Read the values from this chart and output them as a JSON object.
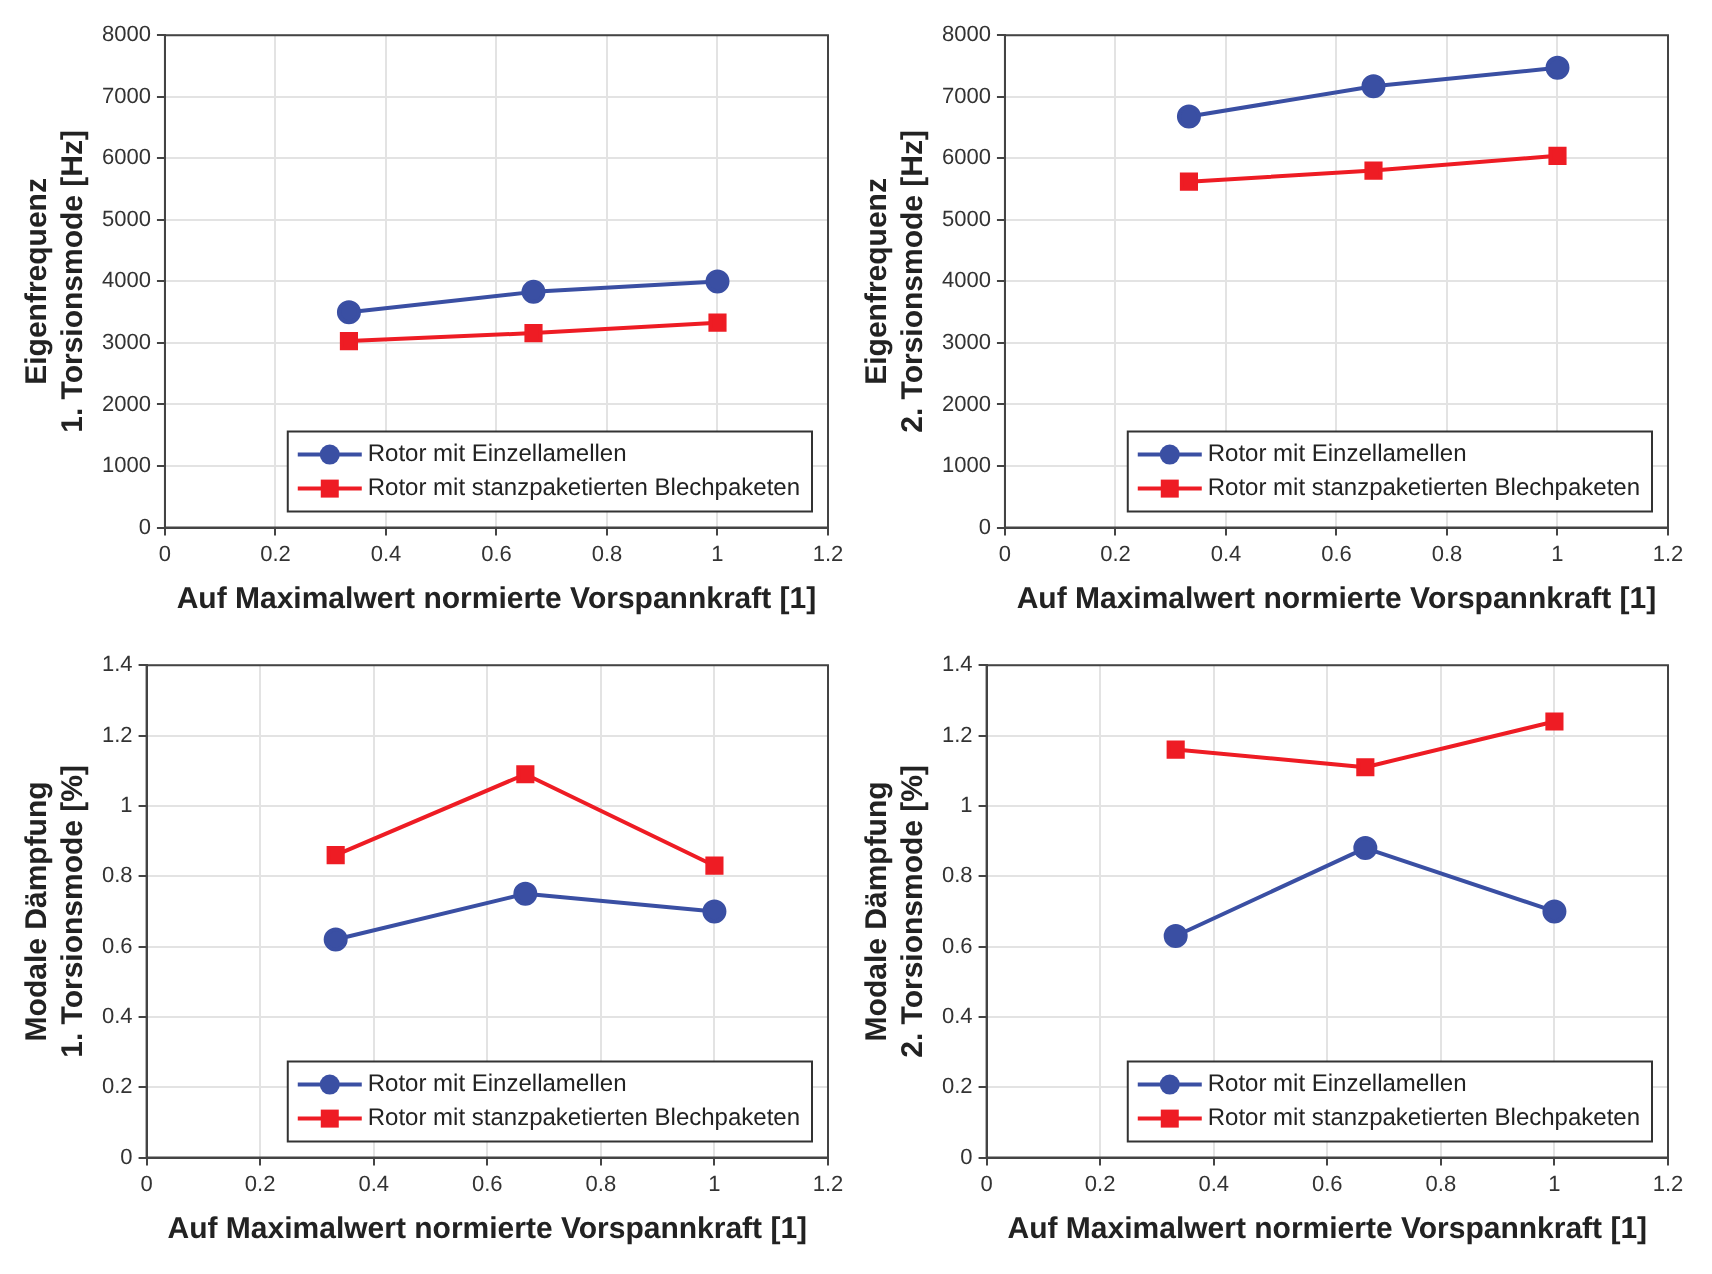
{
  "chart_data": [
    {
      "type": "line",
      "xlabel": "Auf Maximalwert normierte Vorspannkraft [1]",
      "ylabel": "Eigenfrequenz\n1. Torsionsmode [Hz]",
      "x": [
        0.333,
        0.667,
        1
      ],
      "xlim": [
        0,
        1.2
      ],
      "xticks": [
        0,
        0.2,
        0.4,
        0.6,
        0.8,
        1,
        1.2
      ],
      "ylim": [
        0,
        8000
      ],
      "yticks": [
        0,
        1000,
        2000,
        3000,
        4000,
        5000,
        6000,
        7000,
        8000
      ],
      "grid": true,
      "legend": "bottom right",
      "series": [
        {
          "name": "Rotor mit Einzellamellen",
          "color": "#3a4fa3",
          "marker": "circle",
          "values": [
            3500,
            3830,
            4000
          ]
        },
        {
          "name": "Rotor mit stanzpaketierten Blechpaketen",
          "color": "#ee1c24",
          "marker": "square",
          "values": [
            3030,
            3160,
            3330
          ]
        }
      ]
    },
    {
      "type": "line",
      "xlabel": "Auf Maximalwert normierte Vorspannkraft [1]",
      "ylabel": "Eigenfrequenz\n2. Torsionsmode [Hz]",
      "x": [
        0.333,
        0.667,
        1
      ],
      "xlim": [
        0,
        1.2
      ],
      "xticks": [
        0,
        0.2,
        0.4,
        0.6,
        0.8,
        1,
        1.2
      ],
      "ylim": [
        0,
        8000
      ],
      "yticks": [
        0,
        1000,
        2000,
        3000,
        4000,
        5000,
        6000,
        7000,
        8000
      ],
      "grid": true,
      "legend": "bottom right",
      "series": [
        {
          "name": "Rotor mit Einzellamellen",
          "color": "#3a4fa3",
          "marker": "circle",
          "values": [
            6680,
            7170,
            7470
          ]
        },
        {
          "name": "Rotor mit stanzpaketierten Blechpaketen",
          "color": "#ee1c24",
          "marker": "square",
          "values": [
            5620,
            5800,
            6040
          ]
        }
      ]
    },
    {
      "type": "line",
      "xlabel": "Auf Maximalwert normierte Vorspannkraft [1]",
      "ylabel": "Modale Dämpfung\n1. Torsionsmode [%]",
      "x": [
        0.333,
        0.667,
        1
      ],
      "xlim": [
        0,
        1.2
      ],
      "xticks": [
        0,
        0.2,
        0.4,
        0.6,
        0.8,
        1,
        1.2
      ],
      "ylim": [
        0,
        1.4
      ],
      "yticks": [
        0,
        0.2,
        0.4,
        0.6,
        0.8,
        1,
        1.2,
        1.4
      ],
      "grid": true,
      "legend": "bottom right",
      "series": [
        {
          "name": "Rotor mit Einzellamellen",
          "color": "#3a4fa3",
          "marker": "circle",
          "values": [
            0.62,
            0.75,
            0.7
          ]
        },
        {
          "name": "Rotor mit stanzpaketierten Blechpaketen",
          "color": "#ee1c24",
          "marker": "square",
          "values": [
            0.86,
            1.09,
            0.83
          ]
        }
      ]
    },
    {
      "type": "line",
      "xlabel": "Auf Maximalwert normierte Vorspannkraft [1]",
      "ylabel": "Modale Dämpfung\n2. Torsionsmode [%]",
      "x": [
        0.333,
        0.667,
        1
      ],
      "xlim": [
        0,
        1.2
      ],
      "xticks": [
        0,
        0.2,
        0.4,
        0.6,
        0.8,
        1,
        1.2
      ],
      "ylim": [
        0,
        1.4
      ],
      "yticks": [
        0,
        0.2,
        0.4,
        0.6,
        0.8,
        1,
        1.2,
        1.4
      ],
      "grid": true,
      "legend": "bottom right",
      "series": [
        {
          "name": "Rotor mit Einzellamellen",
          "color": "#3a4fa3",
          "marker": "circle",
          "values": [
            0.63,
            0.88,
            0.7
          ]
        },
        {
          "name": "Rotor mit stanzpaketierten Blechpaketen",
          "color": "#ee1c24",
          "marker": "square",
          "values": [
            1.16,
            1.11,
            1.24
          ]
        }
      ]
    }
  ]
}
